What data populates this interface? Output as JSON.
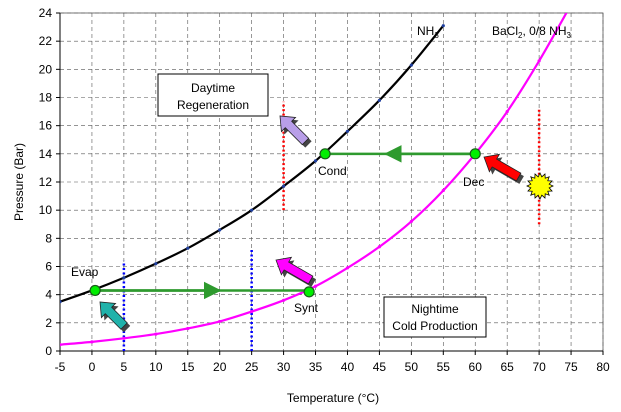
{
  "chart_data": {
    "type": "line",
    "xlabel": "Temperature (°C)",
    "ylabel": "Pressure (Bar)",
    "xlim": [
      -5,
      80
    ],
    "ylim": [
      0,
      24
    ],
    "xticks": [
      -5,
      0,
      5,
      10,
      15,
      20,
      25,
      30,
      35,
      40,
      45,
      50,
      55,
      60,
      65,
      70,
      75,
      80
    ],
    "yticks": [
      0,
      2,
      4,
      6,
      8,
      10,
      12,
      14,
      16,
      18,
      20,
      22,
      24
    ],
    "grid": "dashed",
    "series": [
      {
        "name": "NH3",
        "label_main": "NH",
        "label_sub": "3",
        "color": "#000000",
        "marker_color": "#1f3f9f",
        "x": [
          -5,
          0,
          5,
          10,
          15,
          20,
          25,
          30,
          35,
          40,
          45,
          50,
          55
        ],
        "y": [
          3.5,
          4.3,
          5.2,
          6.2,
          7.3,
          8.6,
          10.0,
          11.7,
          13.5,
          15.6,
          17.8,
          20.3,
          23.1
        ]
      },
      {
        "name": "BaCl2, 0/8 NH3",
        "label_main": "BaCl",
        "label_sub": "2",
        "label_rest": ", 0/8 NH",
        "label_sub2": "3",
        "color": "#ff00ff",
        "marker_color": "#ff00ff",
        "x": [
          -5,
          0,
          5,
          10,
          15,
          20,
          25,
          30,
          35,
          40,
          45,
          50,
          55,
          60,
          65,
          70,
          75
        ],
        "y": [
          0.45,
          0.65,
          0.9,
          1.2,
          1.6,
          2.1,
          2.8,
          3.6,
          4.6,
          5.9,
          7.4,
          9.2,
          11.4,
          14.0,
          17.0,
          20.6,
          24.7
        ]
      }
    ],
    "points": [
      {
        "label": "Evap",
        "x": 0.5,
        "y": 4.3
      },
      {
        "label": "Synt",
        "x": 34,
        "y": 4.2
      },
      {
        "label": "Cond",
        "x": 36.5,
        "y": 14
      },
      {
        "label": "Dec",
        "x": 60,
        "y": 14
      }
    ],
    "vertical_lines": [
      {
        "x": 5,
        "y_range": [
          0,
          6.4
        ],
        "color": "#0000ff"
      },
      {
        "x": 25,
        "y_range": [
          0,
          7.3
        ],
        "color": "#0000ff"
      },
      {
        "x": 30,
        "y_range": [
          10,
          17.7
        ],
        "color": "#ff0000"
      },
      {
        "x": 70,
        "y_range": [
          9,
          17.2
        ],
        "color": "#ff0000"
      }
    ],
    "annotations": {
      "daytime": [
        "Daytime",
        "Regeneration"
      ],
      "nightime": [
        "Nightime",
        "Cold Production"
      ]
    },
    "colors": {
      "process_line": "#2e9a2e",
      "point_fill": "#00ee00",
      "arrow_teal": "#20b2aa",
      "arrow_magenta": "#ff00ff",
      "arrow_lavender": "#b89ee8",
      "arrow_red": "#ff0000",
      "sun": "#ffff00"
    }
  }
}
